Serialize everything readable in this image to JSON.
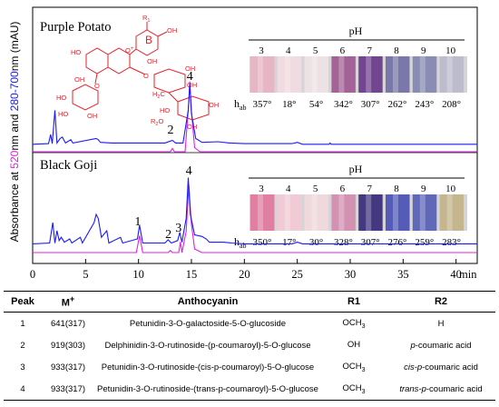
{
  "chart_data": [
    {
      "type": "line",
      "name": "Purple Potato",
      "xlabel": "min",
      "ylabel_parts": [
        "Absorbance  at ",
        "520",
        "nm and ",
        "280-700",
        "nm (mAU)"
      ],
      "xlim": [
        0,
        42
      ],
      "xticks": [
        0,
        5,
        10,
        15,
        20,
        25,
        30,
        35,
        40
      ],
      "series": [
        {
          "label": "280-700 nm",
          "color": "#1a1aff",
          "points": [
            [
              0,
              0.03
            ],
            [
              1.5,
              0.04
            ],
            [
              1.7,
              0.18
            ],
            [
              1.85,
              0.04
            ],
            [
              2.1,
              0.55
            ],
            [
              2.3,
              0.05
            ],
            [
              2.6,
              0.12
            ],
            [
              2.8,
              0.14
            ],
            [
              3.1,
              0.05
            ],
            [
              3.6,
              0.1
            ],
            [
              3.8,
              0.05
            ],
            [
              6.0,
              0.12
            ],
            [
              6.2,
              0.1
            ],
            [
              6.4,
              0.06
            ],
            [
              7.5,
              0.05
            ],
            [
              10,
              0.05
            ],
            [
              12.5,
              0.05
            ],
            [
              13.2,
              0.09
            ],
            [
              13.5,
              0.05
            ],
            [
              14.2,
              0.05
            ],
            [
              14.7,
              0.55
            ],
            [
              14.85,
              0.96
            ],
            [
              15.0,
              0.5
            ],
            [
              15.4,
              0.12
            ],
            [
              16.0,
              0.06
            ],
            [
              17.5,
              0.07
            ],
            [
              18.6,
              0.05
            ],
            [
              20,
              0.04
            ],
            [
              24.5,
              0.04
            ],
            [
              25,
              0.06
            ],
            [
              25.5,
              0.03
            ],
            [
              28,
              0.03
            ],
            [
              28.1,
              0.05
            ],
            [
              28.2,
              0.03
            ],
            [
              42,
              0.03
            ]
          ]
        },
        {
          "label": "520 nm",
          "color": "#e020e0",
          "points": [
            [
              0,
              0.0
            ],
            [
              13,
              0.0
            ],
            [
              13.2,
              0.04
            ],
            [
              13.4,
              0.0
            ],
            [
              14.4,
              0.0
            ],
            [
              14.75,
              0.6
            ],
            [
              14.85,
              0.86
            ],
            [
              15.0,
              0.5
            ],
            [
              15.3,
              0.05
            ],
            [
              15.8,
              0.0
            ],
            [
              42,
              0.0
            ]
          ]
        }
      ],
      "peaks": [
        {
          "label": "2",
          "x": 13.2
        },
        {
          "label": "4",
          "x": 14.85
        }
      ]
    },
    {
      "type": "line",
      "name": "Black Goji",
      "xlim": [
        0,
        42
      ],
      "series": [
        {
          "label": "280-700 nm",
          "color": "#1a1aff",
          "points": [
            [
              0,
              0.04
            ],
            [
              1.6,
              0.05
            ],
            [
              1.9,
              0.3
            ],
            [
              2.1,
              0.05
            ],
            [
              2.3,
              0.2
            ],
            [
              2.5,
              0.08
            ],
            [
              2.7,
              0.12
            ],
            [
              3.0,
              0.06
            ],
            [
              3.5,
              0.1
            ],
            [
              3.7,
              0.05
            ],
            [
              4.5,
              0.12
            ],
            [
              4.7,
              0.05
            ],
            [
              5.8,
              0.3
            ],
            [
              6.0,
              0.4
            ],
            [
              6.2,
              0.35
            ],
            [
              6.5,
              0.12
            ],
            [
              7.0,
              0.2
            ],
            [
              7.2,
              0.05
            ],
            [
              8.3,
              0.12
            ],
            [
              8.5,
              0.05
            ],
            [
              9.9,
              0.1
            ],
            [
              10.1,
              0.27
            ],
            [
              10.4,
              0.05
            ],
            [
              12.5,
              0.05
            ],
            [
              12.8,
              0.09
            ],
            [
              13.1,
              0.05
            ],
            [
              13.7,
              0.08
            ],
            [
              13.9,
              0.18
            ],
            [
              14.1,
              0.06
            ],
            [
              14.5,
              0.35
            ],
            [
              14.7,
              0.85
            ],
            [
              14.9,
              0.4
            ],
            [
              15.3,
              0.15
            ],
            [
              16.0,
              0.13
            ],
            [
              16.4,
              0.1
            ],
            [
              16.7,
              0.06
            ],
            [
              18,
              0.06
            ],
            [
              18.8,
              0.05
            ],
            [
              20,
              0.04
            ],
            [
              24.5,
              0.04
            ],
            [
              25,
              0.06
            ],
            [
              25.5,
              0.04
            ],
            [
              42,
              0.04
            ]
          ]
        },
        {
          "label": "520 nm",
          "color": "#e020e0",
          "points": [
            [
              0,
              0.0
            ],
            [
              9.8,
              0.0
            ],
            [
              10.1,
              0.24
            ],
            [
              10.4,
              0.0
            ],
            [
              12.8,
              0.0
            ],
            [
              13.0,
              0.03
            ],
            [
              13.2,
              0.0
            ],
            [
              13.8,
              0.0
            ],
            [
              13.95,
              0.15
            ],
            [
              14.1,
              0.0
            ],
            [
              14.5,
              0.3
            ],
            [
              14.75,
              0.95
            ],
            [
              15.0,
              0.4
            ],
            [
              15.3,
              0.05
            ],
            [
              16,
              0.0
            ],
            [
              42,
              0.0
            ]
          ]
        }
      ],
      "peaks": [
        {
          "label": "1",
          "x": 10.1
        },
        {
          "label": "2",
          "x": 13.0
        },
        {
          "label": "3",
          "x": 13.95
        },
        {
          "label": "4",
          "x": 14.75
        }
      ]
    }
  ],
  "insets": [
    {
      "title": "pH",
      "ph": [
        "3",
        "4",
        "5",
        "6",
        "7",
        "8",
        "9",
        "10"
      ],
      "hab_label": "h",
      "hab_sub": "ab",
      "hab": [
        "357°",
        "18°",
        "54°",
        "342°",
        "307°",
        "262°",
        "243°",
        "208°"
      ],
      "colors": [
        "#e8b4c4",
        "#f1dbe1",
        "#ede3e5",
        "#a05d93",
        "#6d3d8c",
        "#7473a6",
        "#8589b1",
        "#bcbbcc"
      ]
    },
    {
      "title": "pH",
      "ph": [
        "3",
        "4",
        "5",
        "6",
        "7",
        "8",
        "9",
        "10"
      ],
      "hab_label": "h",
      "hab_sub": "ab",
      "hab": [
        "350°",
        "17°",
        "30°",
        "328°",
        "307°",
        "276°",
        "259°",
        "283°"
      ],
      "colors": [
        "#e07a9e",
        "#f1cad6",
        "#f0d9dc",
        "#d38eb0",
        "#3c2f7c",
        "#4e55b5",
        "#5a62b6",
        "#c4b48a"
      ]
    }
  ],
  "structure": {
    "ring_label": "B",
    "r1": "R",
    "r1_sub": "1",
    "r2": "R",
    "r2_sub": "2",
    "oplus": "O",
    "ring_labels": [
      "OH",
      "HO",
      "OH",
      "OH",
      "OH",
      "HO",
      "OH",
      "OH",
      "HO",
      "HO",
      "H",
      "C",
      "3",
      "O",
      "OH",
      "OH",
      "OH",
      "O",
      "O",
      "O",
      "O",
      "O",
      "O",
      "O"
    ]
  },
  "table": {
    "headers": [
      "Peak",
      "M",
      "+",
      "Anthocyanin",
      "R1",
      "R2"
    ],
    "rows": [
      {
        "peak": "1",
        "m": "641(317)",
        "name": "Petunidin-3-O-galactoside-5-O-glucoside",
        "r1": "OCH",
        "r1_sub": "3",
        "r2_pre": "",
        "r2_it": "",
        "r2_post": "H"
      },
      {
        "peak": "2",
        "m": "919(303)",
        "name": "Delphinidin-3-O-rutinoside-(p-coumaroyl)-5-O-glucose",
        "r1": "OH",
        "r1_sub": "",
        "r2_pre": "",
        "r2_it": "p",
        "r2_post": "-coumaric acid"
      },
      {
        "peak": "3",
        "m": "933(317)",
        "name": "Petunidin-3-O-rutinoside-(cis-p-coumaroyl)-5-O-glucose",
        "r1": "OCH",
        "r1_sub": "3",
        "r2_pre": "",
        "r2_it": "cis-p",
        "r2_post": "-coumaric acid"
      },
      {
        "peak": "4",
        "m": "933(317)",
        "name": "Petunidin-3-O-rutinoside-(trans-p-coumaroyl)-5-O-glucose",
        "r1": "OCH",
        "r1_sub": "3",
        "r2_pre": "",
        "r2_it": "trans-p",
        "r2_post": "-coumaric acid"
      }
    ]
  }
}
